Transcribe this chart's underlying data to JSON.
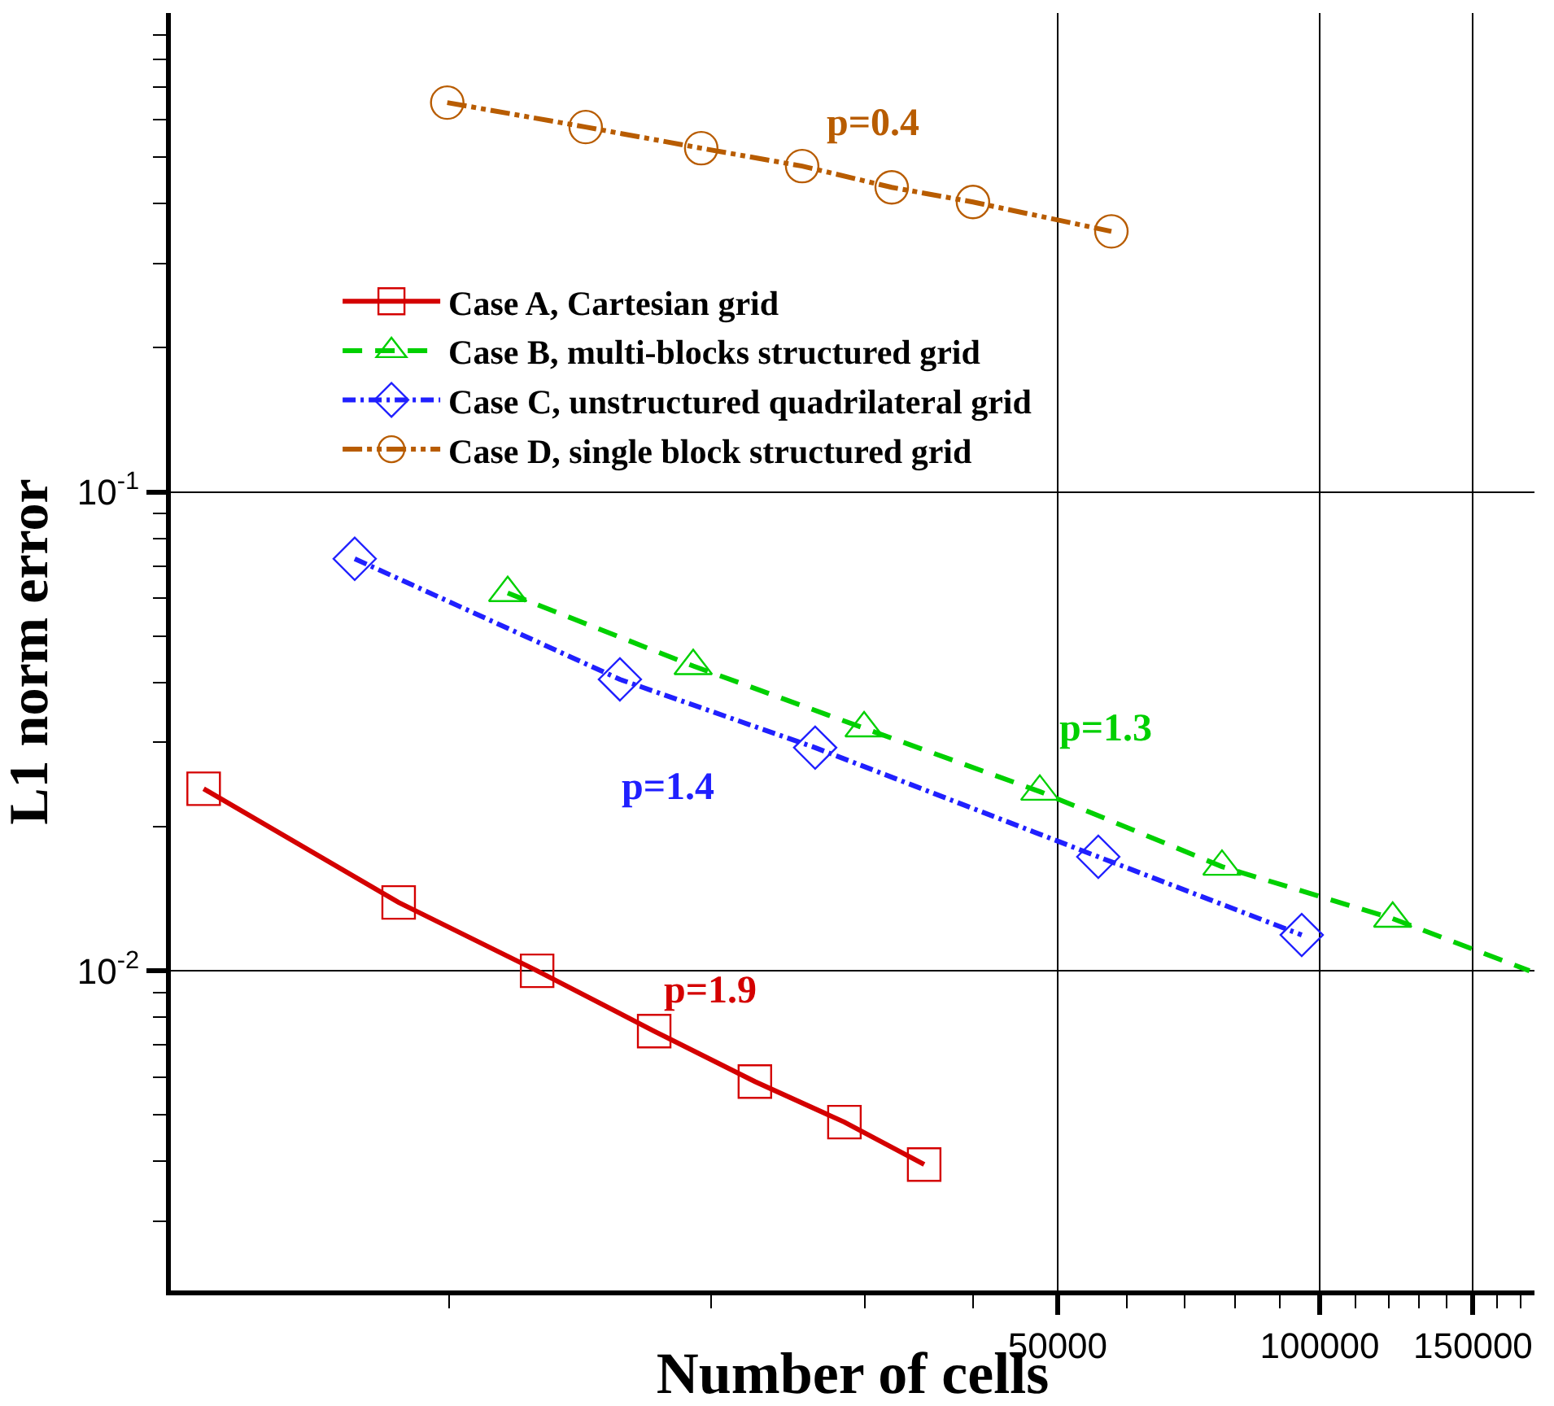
{
  "chart_data": {
    "type": "line",
    "xlabel": "Number of cells",
    "ylabel": "L1 norm error",
    "log": "xy",
    "grid": true,
    "legend": "top",
    "xlim": [
      4790,
      176500
    ],
    "ylim": [
      0.00215,
      1.0
    ],
    "xticks": [
      {
        "value": 10000,
        "label": null
      },
      {
        "value": 20000,
        "label": null
      },
      {
        "value": 30000,
        "label": null
      },
      {
        "value": 40000,
        "label": null
      },
      50000,
      {
        "value": 60000,
        "label": null
      },
      {
        "value": 70000,
        "label": null
      },
      {
        "value": 80000,
        "label": null
      },
      {
        "value": 90000,
        "label": null
      },
      100000,
      {
        "value": 110000,
        "label": null
      },
      {
        "value": 120000,
        "label": null
      },
      {
        "value": 130000,
        "label": null
      },
      {
        "value": 140000,
        "label": null
      },
      150000,
      {
        "value": 160000,
        "label": null
      },
      {
        "value": 170000,
        "label": null
      }
    ],
    "yticks": [
      {
        "value": 0.003,
        "label": null
      },
      {
        "value": 0.004,
        "label": null
      },
      {
        "value": 0.005,
        "label": null
      },
      {
        "value": 0.006,
        "label": null
      },
      {
        "value": 0.007,
        "label": null
      },
      {
        "value": 0.008,
        "label": null
      },
      {
        "value": 0.009,
        "label": null
      },
      {
        "value": 0.01,
        "label": "10$^{-2}$"
      },
      {
        "value": 0.02,
        "label": null
      },
      {
        "value": 0.03,
        "label": null
      },
      {
        "value": 0.04,
        "label": null
      },
      {
        "value": 0.05,
        "label": null
      },
      {
        "value": 0.06,
        "label": null
      },
      {
        "value": 0.07,
        "label": null
      },
      {
        "value": 0.08,
        "label": null
      },
      {
        "value": 0.09,
        "label": null
      },
      {
        "value": 0.1,
        "label": "10$^{-1}$"
      },
      {
        "value": 0.2,
        "label": null
      },
      {
        "value": 0.3,
        "label": null
      },
      {
        "value": 0.4,
        "label": null
      },
      {
        "value": 0.5,
        "label": null
      },
      {
        "value": 0.6,
        "label": null
      },
      {
        "value": 0.7,
        "label": null
      },
      {
        "value": 0.8,
        "label": null
      },
      {
        "value": 0.9,
        "label": null
      }
    ],
    "series": [
      {
        "name": "Case A, Cartesian grid",
        "color": "#d40000",
        "marker": "square",
        "line_style": "solid",
        "x": [
          5224,
          8750,
          12620,
          17200,
          22450,
          28450,
          35130
        ],
        "values": [
          0.024,
          0.01389,
          0.01,
          0.00748,
          0.00587,
          0.00483,
          0.00394
        ]
      },
      {
        "name": "Case B, multi-blocks structured grid",
        "color": "#00d000",
        "marker": "triangle",
        "line_style": "dashed",
        "x": [
          11675,
          19070,
          29970,
          47700,
          77230,
          121300
        ],
        "values": [
          0.0615,
          0.0433,
          0.0321,
          0.02367,
          0.0165,
          0.01285
        ]
      },
      {
        "name": "Case C, unstructured quadrilateral grid",
        "color": "#2020ff",
        "marker": "diamond",
        "line_style": "dashdot",
        "x": [
          7790,
          15710,
          26330,
          55680,
          95360
        ],
        "values": [
          0.0725,
          0.0406,
          0.02924,
          0.0173,
          0.01188
        ]
      },
      {
        "name": "Case D, single block structured grid",
        "color": "#b85c00",
        "marker": "circle",
        "line_style": "dashdotdot",
        "x": [
          9950,
          14350,
          19480,
          25440,
          32240,
          39970,
          57640
        ],
        "values": [
          0.65,
          0.578,
          0.522,
          0.479,
          0.4325,
          0.403,
          0.35
        ]
      },
      {
        "color": "#00d000",
        "marker": "none",
        "line_style": "dashed",
        "x": [
          121300,
          174200
        ],
        "values": [
          0.01285,
          0.01
        ]
      }
    ],
    "annotations": [
      "p=0.4",
      "p=1.3",
      "p=1.4",
      "p=1.9"
    ]
  }
}
